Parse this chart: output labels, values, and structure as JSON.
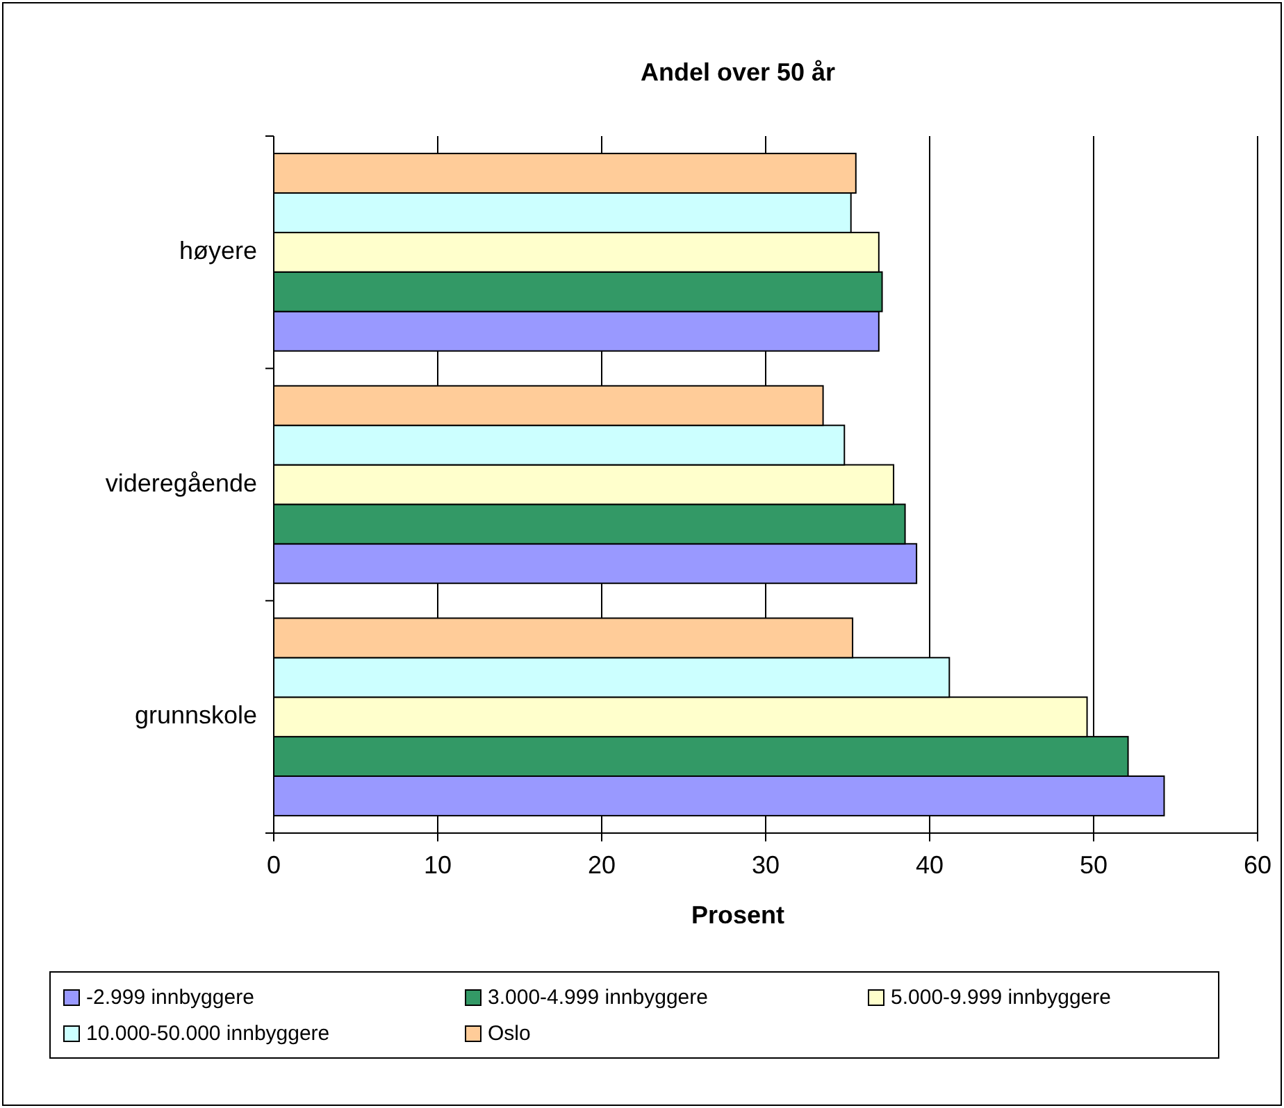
{
  "chart_data": {
    "type": "bar",
    "orientation": "horizontal",
    "title": "Andel over 50 år",
    "xlabel": "Prosent",
    "categories": [
      "høyere",
      "videregående",
      "grunnskole"
    ],
    "series": [
      {
        "name": "-2.999 innbyggere",
        "color": "#9999ff",
        "values": [
          36.9,
          39.2,
          54.3
        ]
      },
      {
        "name": "3.000-4.999 innbyggere",
        "color": "#339966",
        "values": [
          37.1,
          38.5,
          52.1
        ]
      },
      {
        "name": "5.000-9.999 innbyggere",
        "color": "#ffffcc",
        "values": [
          36.9,
          37.8,
          49.6
        ]
      },
      {
        "name": "10.000-50.000 innbyggere",
        "color": "#ccffff",
        "values": [
          35.2,
          34.8,
          41.2
        ]
      },
      {
        "name": "Oslo",
        "color": "#ffcc99",
        "values": [
          35.5,
          33.5,
          35.3
        ]
      }
    ],
    "xlim": [
      0,
      60
    ],
    "xticks": [
      0,
      10,
      20,
      30,
      40,
      50,
      60
    ],
    "grid": "x",
    "legend": "bottom"
  }
}
